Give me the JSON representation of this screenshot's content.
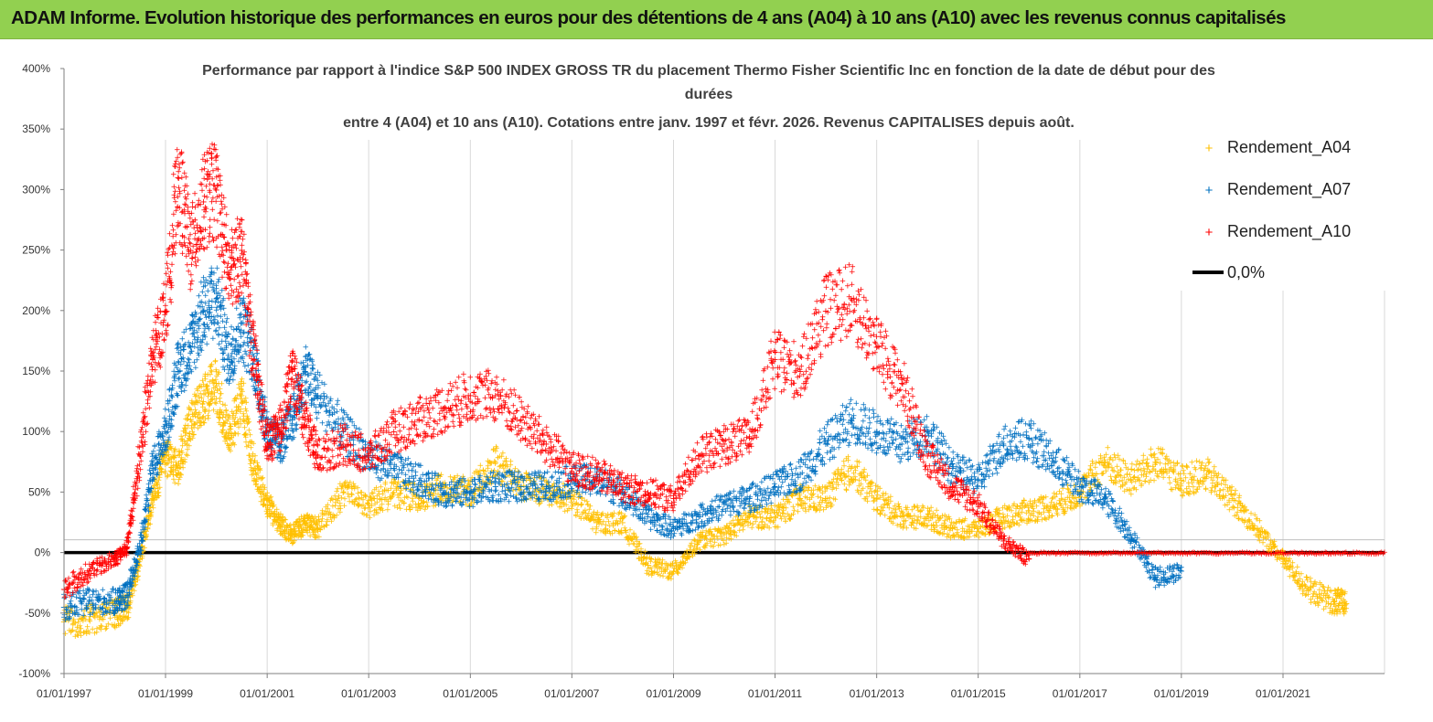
{
  "header": {
    "title": "ADAM Informe. Evolution historique des performances en euros pour des détentions de 4 ans (A04) à 10 ans (A10) avec les revenus connus capitalisés"
  },
  "chart_data": {
    "type": "scatter",
    "title_lines": [
      "Performance par rapport à l'indice S&P 500 INDEX GROSS TR  du placement Thermo  Fisher Scientific Inc en  fonction de la date de début pour des",
      "durées",
      "entre 4 (A04) et 10 ans (A10).  Cotations entre janv. 1997 et févr.  2026. Revenus CAPITALISES depuis août."
    ],
    "xlabel": "",
    "ylabel": "",
    "ylim": [
      -100,
      400
    ],
    "xlim": [
      "1997-01-01",
      "2023-01-01"
    ],
    "y_ticks": [
      "400%",
      "350%",
      "300%",
      "250%",
      "200%",
      "150%",
      "100%",
      "50%",
      "0%",
      "-50%",
      "-100%"
    ],
    "x_ticks": [
      "01/01/1997",
      "01/01/1999",
      "01/01/2001",
      "01/01/2003",
      "01/01/2005",
      "01/01/2007",
      "01/01/2009",
      "01/01/2011",
      "01/01/2013",
      "01/01/2015",
      "01/01/2017",
      "01/01/2019",
      "01/01/2021"
    ],
    "grid": "vertical",
    "legend_position": "right",
    "series": [
      {
        "name": "Rendement_A04",
        "color": "#ffc000",
        "x": [
          "1997-01-01",
          "1997-07-01",
          "1998-01-01",
          "1998-04-01",
          "1998-07-01",
          "1998-10-01",
          "1999-01-01",
          "1999-04-01",
          "1999-07-01",
          "1999-10-01",
          "2000-01-01",
          "2000-04-01",
          "2000-07-01",
          "2000-10-01",
          "2001-01-01",
          "2001-04-01",
          "2001-07-01",
          "2001-10-01",
          "2002-01-01",
          "2002-07-01",
          "2003-01-01",
          "2003-07-01",
          "2004-01-01",
          "2004-07-01",
          "2005-01-01",
          "2005-07-01",
          "2006-01-01",
          "2006-07-01",
          "2007-01-01",
          "2007-07-01",
          "2008-01-01",
          "2008-07-01",
          "2009-01-01",
          "2009-07-01",
          "2010-01-01",
          "2010-07-01",
          "2011-01-01",
          "2011-07-01",
          "2012-01-01",
          "2012-07-01",
          "2013-01-01",
          "2013-07-01",
          "2014-01-01",
          "2014-07-01",
          "2015-01-01",
          "2015-07-01",
          "2016-01-01",
          "2016-07-01",
          "2017-01-01",
          "2017-07-01",
          "2018-01-01",
          "2018-07-01",
          "2019-01-01",
          "2019-07-01",
          "2020-01-01",
          "2020-07-01",
          "2021-01-01",
          "2021-07-01",
          "2022-01-01",
          "2022-04-01"
        ],
        "values": [
          -57,
          -55,
          -50,
          -45,
          -5,
          45,
          80,
          70,
          110,
          125,
          140,
          95,
          130,
          70,
          40,
          25,
          15,
          25,
          20,
          50,
          40,
          50,
          45,
          55,
          50,
          75,
          55,
          50,
          45,
          25,
          25,
          -10,
          -15,
          10,
          15,
          30,
          30,
          45,
          45,
          70,
          45,
          30,
          30,
          20,
          20,
          30,
          35,
          40,
          50,
          75,
          60,
          75,
          60,
          65,
          45,
          20,
          -5,
          -30,
          -40,
          -42
        ]
      },
      {
        "name": "Rendement_A07",
        "color": "#0070c0",
        "x": [
          "1997-01-01",
          "1997-07-01",
          "1998-01-01",
          "1998-04-01",
          "1998-07-01",
          "1998-10-01",
          "1999-01-01",
          "1999-04-01",
          "1999-07-01",
          "1999-10-01",
          "2000-01-01",
          "2000-04-01",
          "2000-07-01",
          "2000-10-01",
          "2001-01-01",
          "2001-04-01",
          "2001-07-01",
          "2001-10-01",
          "2002-01-01",
          "2002-07-01",
          "2003-01-01",
          "2003-07-01",
          "2004-01-01",
          "2004-07-01",
          "2005-01-01",
          "2005-07-01",
          "2006-01-01",
          "2006-07-01",
          "2007-01-01",
          "2007-07-01",
          "2008-01-01",
          "2008-07-01",
          "2009-01-01",
          "2009-07-01",
          "2010-01-01",
          "2010-07-01",
          "2011-01-01",
          "2011-07-01",
          "2012-01-01",
          "2012-07-01",
          "2013-01-01",
          "2013-07-01",
          "2014-01-01",
          "2014-07-01",
          "2015-01-01",
          "2015-07-01",
          "2016-01-01",
          "2016-07-01",
          "2017-01-01",
          "2017-07-01",
          "2018-01-01",
          "2018-07-01",
          "2019-01-01"
        ],
        "values": [
          -45,
          -40,
          -40,
          -35,
          5,
          70,
          100,
          150,
          170,
          200,
          210,
          160,
          190,
          160,
          100,
          90,
          110,
          150,
          130,
          100,
          80,
          70,
          60,
          50,
          50,
          55,
          55,
          55,
          60,
          60,
          50,
          30,
          20,
          30,
          40,
          45,
          55,
          65,
          90,
          110,
          100,
          90,
          100,
          70,
          60,
          90,
          95,
          75,
          55,
          45,
          15,
          -20,
          -15
        ]
      },
      {
        "name": "Rendement_A10",
        "color": "#ff0000",
        "x": [
          "1997-01-01",
          "1997-07-01",
          "1998-01-01",
          "1998-04-01",
          "1998-07-01",
          "1998-10-01",
          "1999-01-01",
          "1999-04-01",
          "1999-07-01",
          "1999-10-01",
          "2000-01-01",
          "2000-04-01",
          "2000-07-01",
          "2000-10-01",
          "2001-01-01",
          "2001-04-01",
          "2001-07-01",
          "2001-10-01",
          "2002-01-01",
          "2002-07-01",
          "2003-01-01",
          "2003-07-01",
          "2004-01-01",
          "2004-07-01",
          "2005-01-01",
          "2005-07-01",
          "2006-01-01",
          "2006-07-01",
          "2007-01-01",
          "2007-07-01",
          "2008-01-01",
          "2008-07-01",
          "2009-01-01",
          "2009-07-01",
          "2010-01-01",
          "2010-07-01",
          "2011-01-01",
          "2011-07-01",
          "2012-01-01",
          "2012-07-01",
          "2013-01-01",
          "2013-07-01",
          "2014-01-01",
          "2014-07-01",
          "2015-01-01",
          "2015-07-01",
          "2016-01-01"
        ],
        "values": [
          -30,
          -15,
          -5,
          5,
          80,
          160,
          200,
          310,
          250,
          290,
          300,
          230,
          250,
          160,
          90,
          100,
          150,
          110,
          80,
          90,
          80,
          100,
          110,
          120,
          130,
          130,
          110,
          90,
          70,
          65,
          55,
          50,
          45,
          80,
          90,
          95,
          160,
          150,
          200,
          210,
          170,
          140,
          80,
          55,
          40,
          10,
          -5
        ]
      },
      {
        "name": "0,0%",
        "color": "#000000",
        "values": [
          0
        ]
      }
    ]
  }
}
